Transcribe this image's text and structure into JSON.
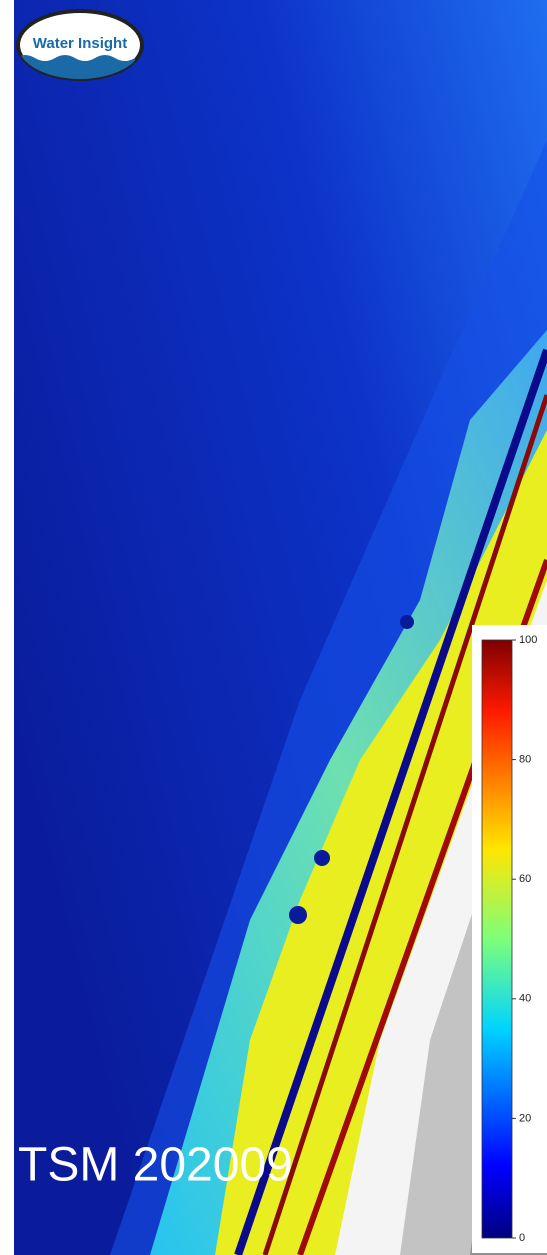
{
  "logo": {
    "text": "Water Insight"
  },
  "label": "TSM 202009",
  "colorbar": {
    "lim": [
      0,
      100
    ],
    "ticks": [
      0,
      20,
      40,
      60,
      80,
      100
    ]
  }
}
